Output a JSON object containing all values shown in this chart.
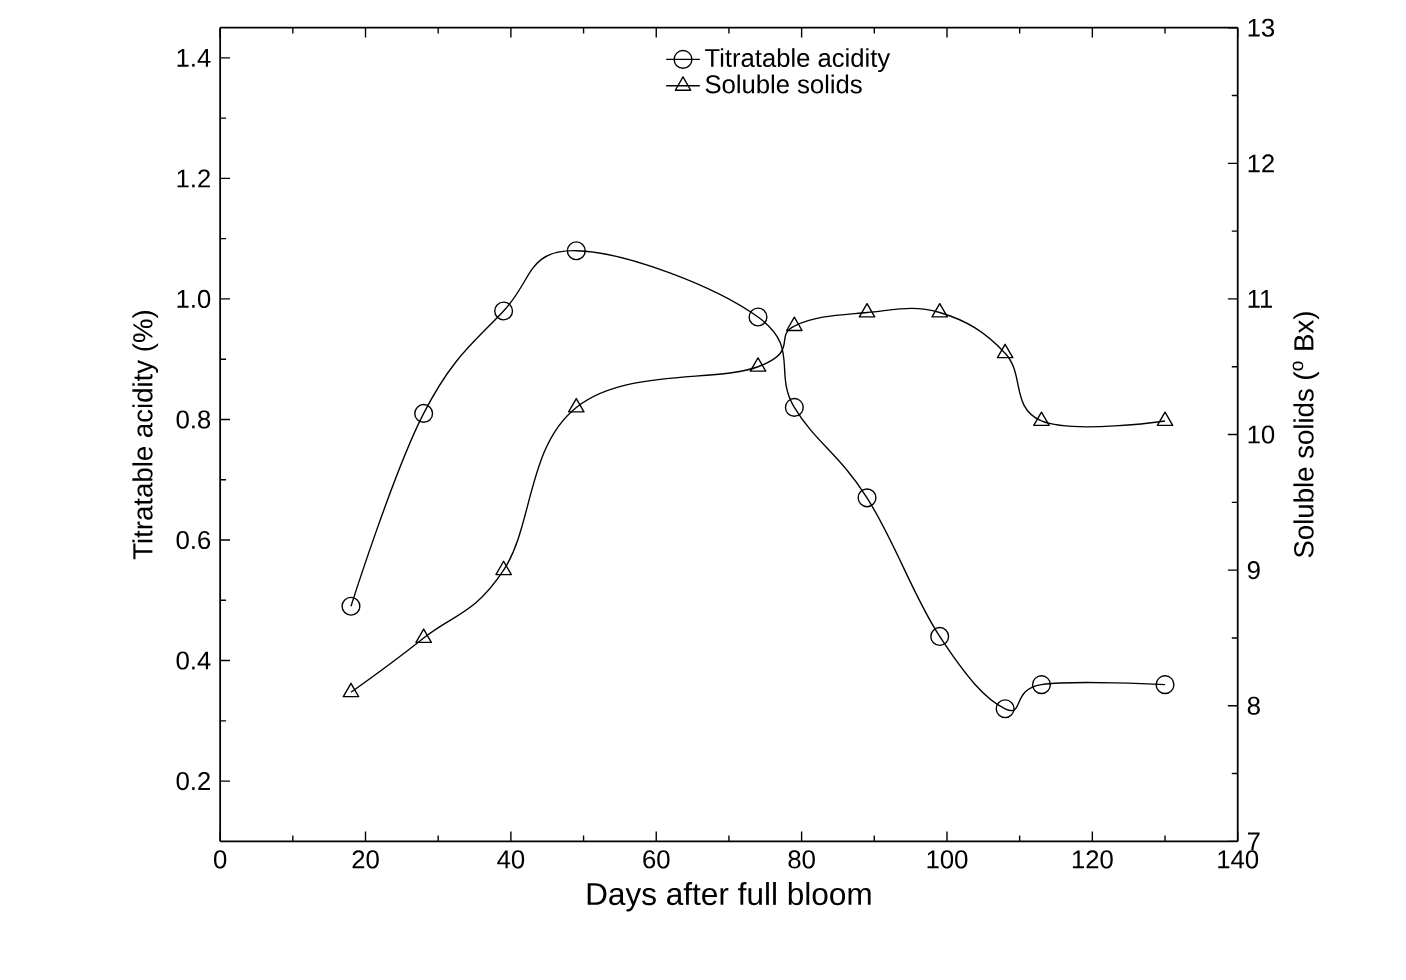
{
  "chart_data": {
    "type": "line",
    "xlabel": "Days after full bloom",
    "ylabel": "Titratable acidity (%)",
    "y2label": "Soluble solids ($^{o}$ Bx)",
    "xlim": [
      0,
      140
    ],
    "xticks": [
      0,
      20,
      40,
      60,
      80,
      100,
      120,
      140
    ],
    "ylim": [
      0.1,
      1.45
    ],
    "yticks": [
      {
        "value": 0.2,
        "label": "0.2"
      },
      {
        "value": 0.4,
        "label": "0.4"
      },
      {
        "value": 0.6,
        "label": "0.6"
      },
      {
        "value": 0.8,
        "label": "0.8"
      },
      {
        "value": 1.0,
        "label": "1.0"
      },
      {
        "value": 1.2,
        "label": "1.2"
      },
      {
        "value": 1.4,
        "label": "1.4"
      }
    ],
    "y2lim": [
      7,
      13
    ],
    "y2ticks": [
      7,
      8,
      9,
      10,
      11,
      12,
      13
    ],
    "legend": "top",
    "grid": false,
    "series": [
      {
        "name": "Titratable acidity",
        "color": "#000000",
        "marker": "circle",
        "x": [
          18,
          28,
          39,
          49,
          74,
          79,
          89,
          99,
          108,
          113,
          130
        ],
        "values": [
          0.49,
          0.81,
          0.98,
          1.08,
          0.97,
          0.82,
          0.67,
          0.44,
          0.32,
          0.36,
          0.36
        ]
      },
      {
        "name": "Soluble solids",
        "color": "#000000",
        "marker": "triangle",
        "axis": "y2",
        "x": [
          18,
          28,
          39,
          49,
          74,
          79,
          89,
          99,
          108,
          113,
          130
        ],
        "values": [
          8.1,
          8.5,
          9.0,
          10.2,
          10.5,
          10.8,
          10.9,
          10.9,
          10.6,
          10.1,
          10.1
        ]
      }
    ]
  }
}
